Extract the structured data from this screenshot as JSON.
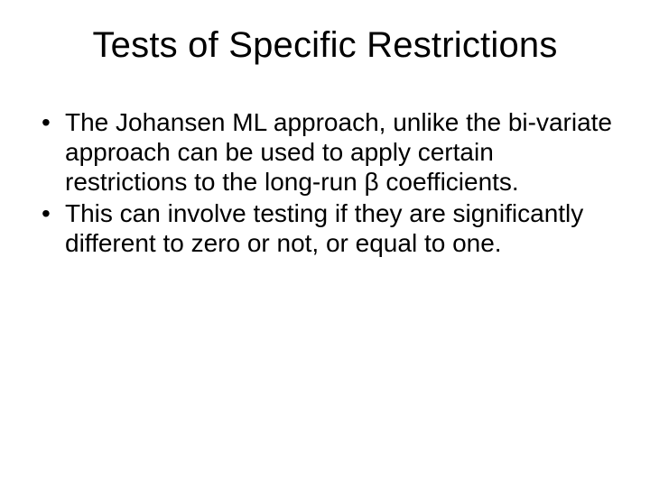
{
  "slide": {
    "title": "Tests of Specific Restrictions",
    "bullets": [
      "The Johansen ML approach, unlike the bi-variate approach can be used to apply certain restrictions to the long-run β coefficients.",
      "This can involve testing if they are significantly different to zero or not, or equal to one."
    ]
  },
  "style": {
    "background_color": "#ffffff",
    "text_color": "#000000",
    "title_fontsize": 40,
    "body_fontsize": 28,
    "font_family": "Arial"
  }
}
